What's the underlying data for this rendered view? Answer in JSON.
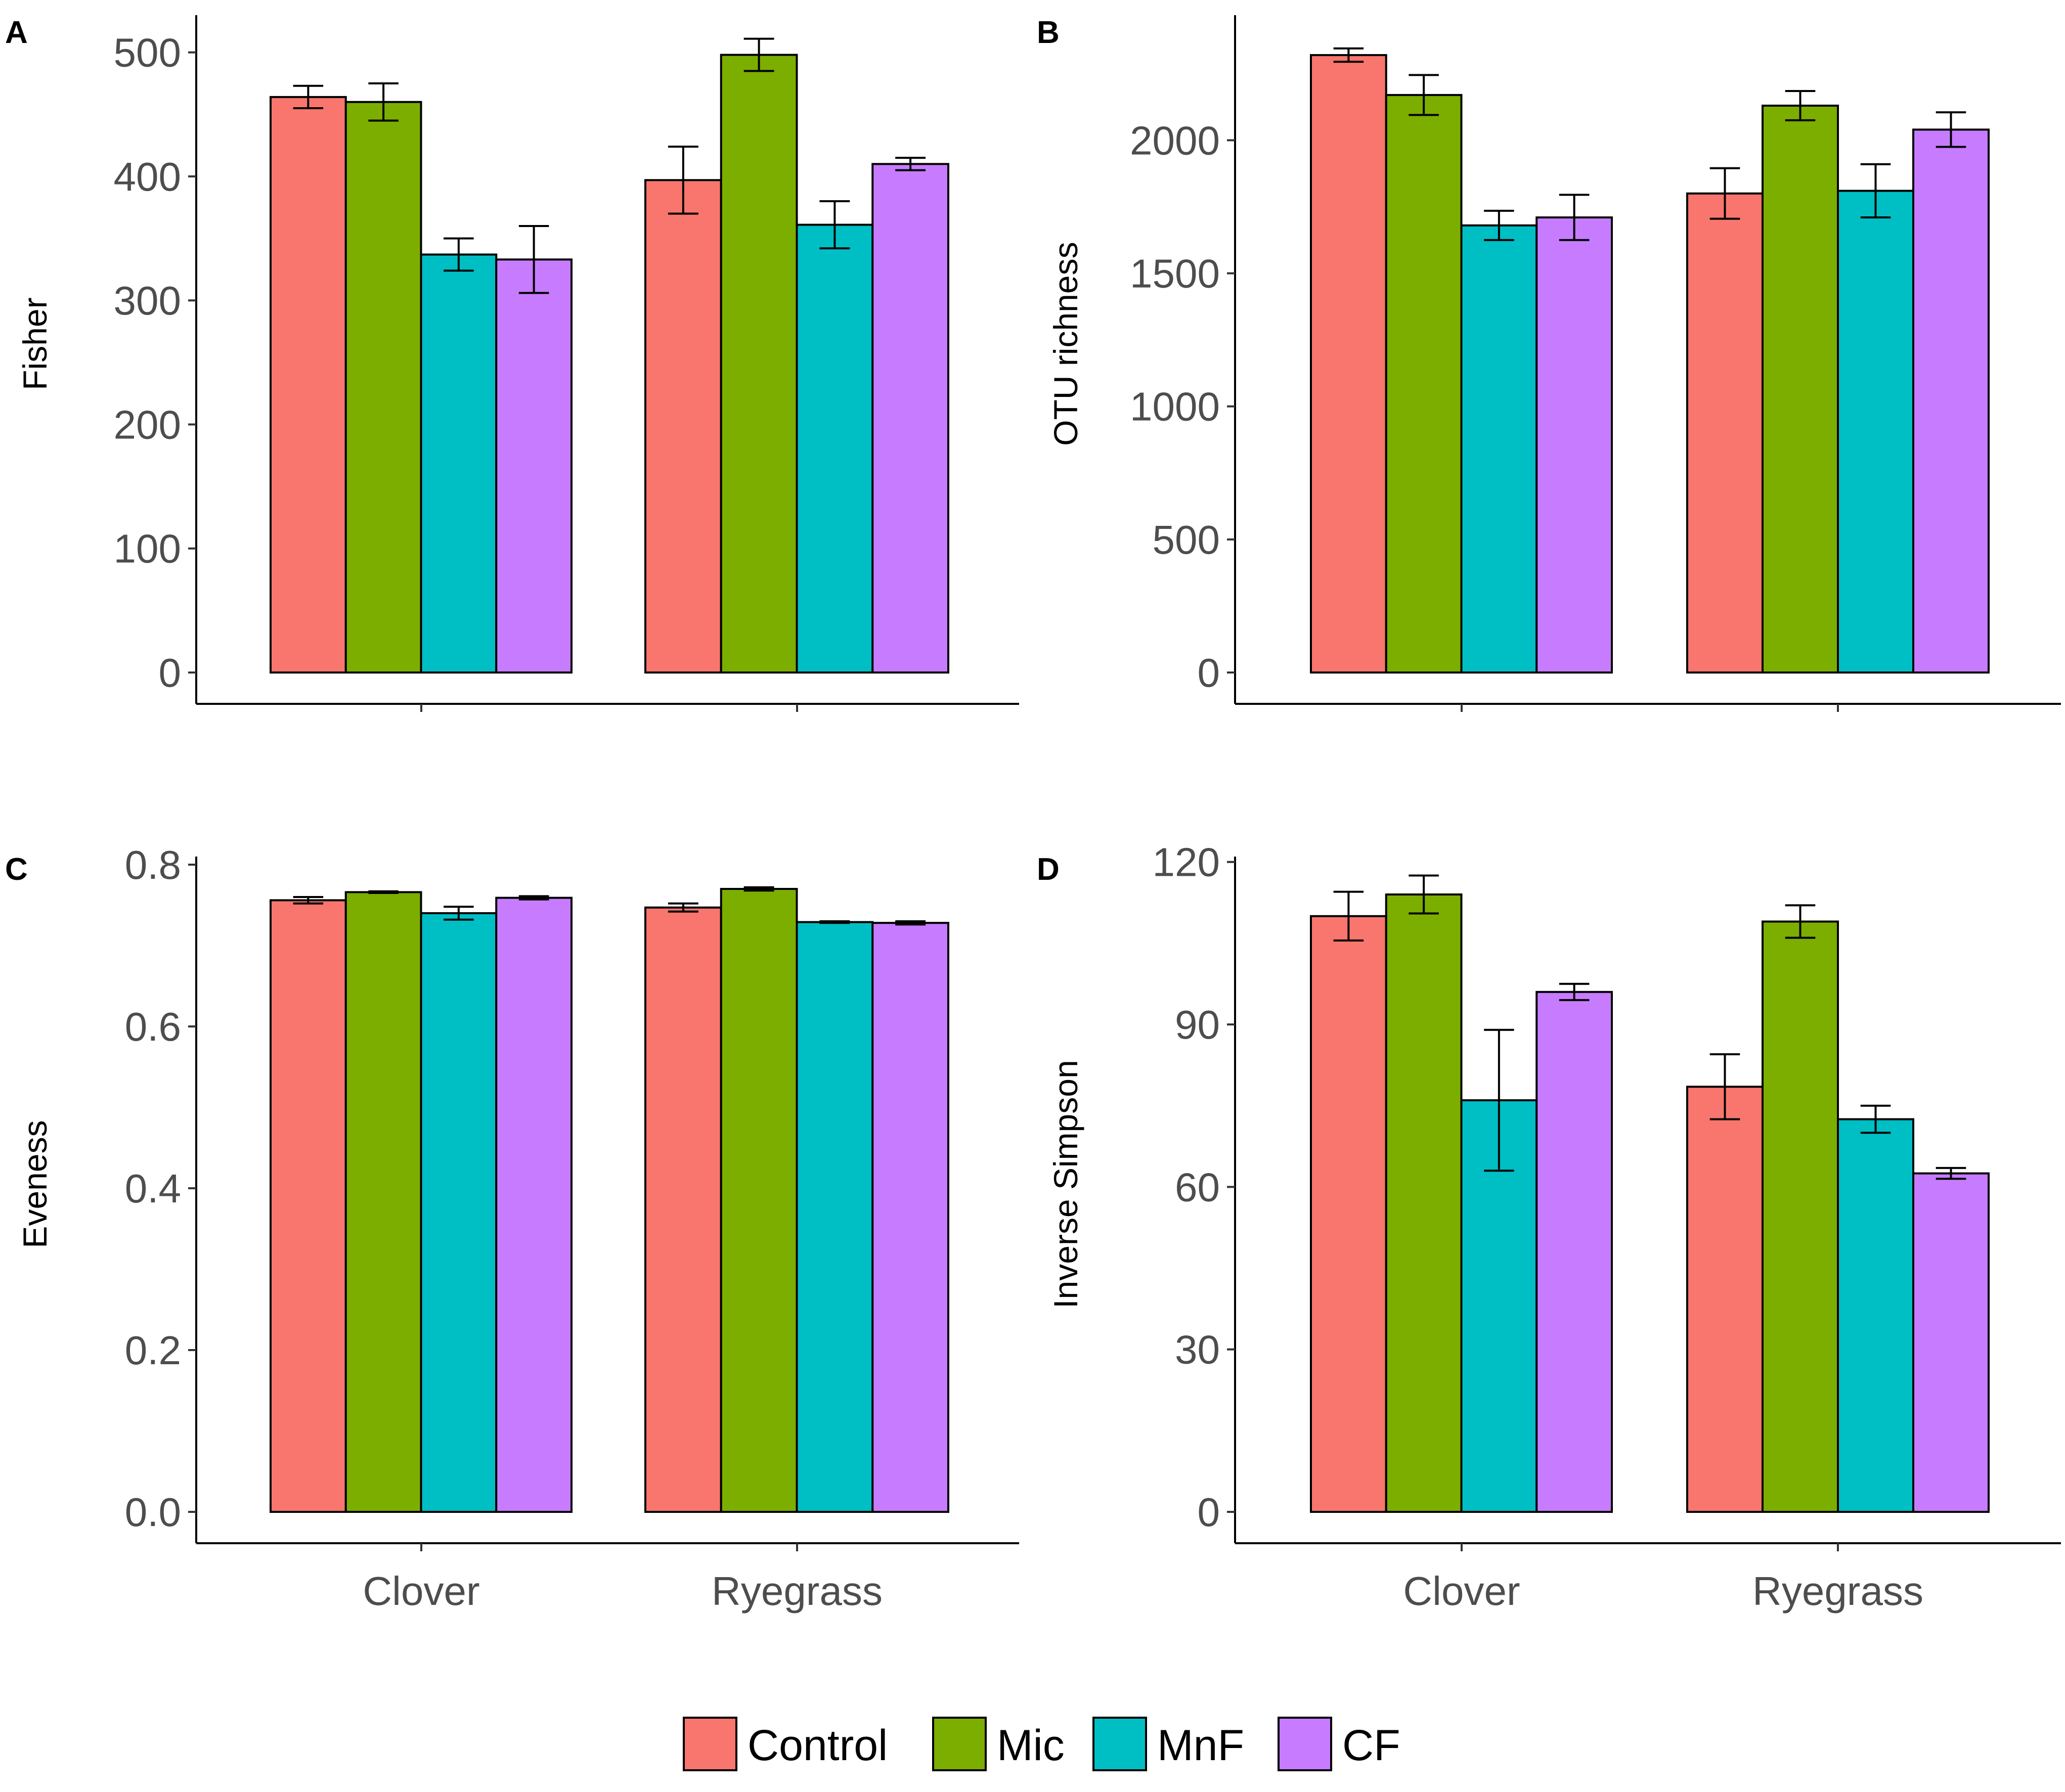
{
  "chart_data": [
    {
      "type": "bar",
      "panel": "A",
      "ylabel": "Fisher",
      "ylim": [
        0,
        530
      ],
      "yticks": [
        0,
        100,
        200,
        300,
        400,
        500
      ],
      "ytick_labels": [
        "0",
        "100",
        "200",
        "300",
        "400",
        "500"
      ],
      "categories": [
        "Clover",
        "Ryegrass"
      ],
      "series": [
        {
          "name": "Control",
          "values": [
            464,
            397
          ],
          "errors": [
            9,
            27
          ]
        },
        {
          "name": "Mic",
          "values": [
            460,
            498
          ],
          "errors": [
            15,
            13
          ]
        },
        {
          "name": "MnF",
          "values": [
            337,
            361
          ],
          "errors": [
            13,
            19
          ]
        },
        {
          "name": "CF",
          "values": [
            333,
            410
          ],
          "errors": [
            27,
            5
          ]
        }
      ]
    },
    {
      "type": "bar",
      "panel": "B",
      "ylabel": "OTU richness",
      "ylim": [
        0,
        2470
      ],
      "yticks": [
        0,
        500,
        1000,
        1500,
        2000
      ],
      "ytick_labels": [
        "0",
        "500",
        "1000",
        "1500",
        "2000"
      ],
      "categories": [
        "Clover",
        "Ryegrass"
      ],
      "series": [
        {
          "name": "Control",
          "values": [
            2320,
            1800
          ],
          "errors": [
            25,
            95
          ]
        },
        {
          "name": "Mic",
          "values": [
            2170,
            2130
          ],
          "errors": [
            75,
            55
          ]
        },
        {
          "name": "MnF",
          "values": [
            1680,
            1810
          ],
          "errors": [
            55,
            100
          ]
        },
        {
          "name": "CF",
          "values": [
            1710,
            2040
          ],
          "errors": [
            85,
            65
          ]
        }
      ]
    },
    {
      "type": "bar",
      "panel": "C",
      "ylabel": "Eveness",
      "ylim": [
        0,
        0.81
      ],
      "yticks": [
        0.0,
        0.2,
        0.4,
        0.6,
        0.8
      ],
      "ytick_labels": [
        "0.0",
        "0.2",
        "0.4",
        "0.6",
        "0.8"
      ],
      "categories": [
        "Clover",
        "Ryegrass"
      ],
      "series": [
        {
          "name": "Control",
          "values": [
            0.756,
            0.747
          ],
          "errors": [
            0.004,
            0.005
          ]
        },
        {
          "name": "Mic",
          "values": [
            0.766,
            0.77
          ],
          "errors": [
            0.001,
            0.002
          ]
        },
        {
          "name": "MnF",
          "values": [
            0.74,
            0.729
          ],
          "errors": [
            0.008,
            0.001
          ]
        },
        {
          "name": "CF",
          "values": [
            0.759,
            0.728
          ],
          "errors": [
            0.002,
            0.002
          ]
        }
      ]
    },
    {
      "type": "bar",
      "panel": "D",
      "ylabel": "Inverse Simpson",
      "ylim": [
        0,
        121
      ],
      "yticks": [
        0,
        30,
        60,
        90,
        120
      ],
      "ytick_labels": [
        "0",
        "30",
        "60",
        "90",
        "120"
      ],
      "categories": [
        "Clover",
        "Ryegrass"
      ],
      "series": [
        {
          "name": "Control",
          "values": [
            110,
            78.5
          ],
          "errors": [
            4.5,
            6
          ]
        },
        {
          "name": "Mic",
          "values": [
            114,
            109
          ],
          "errors": [
            3.5,
            3
          ]
        },
        {
          "name": "MnF",
          "values": [
            76,
            72.5
          ],
          "errors": [
            13,
            2.5
          ]
        },
        {
          "name": "CF",
          "values": [
            96,
            62.5
          ],
          "errors": [
            1.5,
            1
          ]
        }
      ]
    }
  ],
  "legend": {
    "items": [
      {
        "name": "Control",
        "color": "#F8766D"
      },
      {
        "name": "Mic",
        "color": "#7CAE00"
      },
      {
        "name": "MnF",
        "color": "#00BFC4"
      },
      {
        "name": "CF",
        "color": "#C77CFF"
      }
    ]
  }
}
